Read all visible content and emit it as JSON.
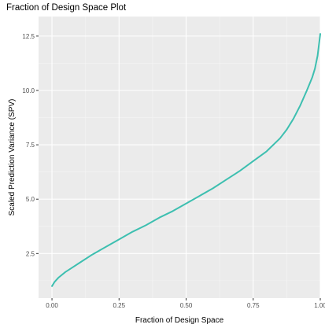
{
  "chart_data": {
    "type": "line",
    "title": "Fraction of Design Space Plot",
    "xlabel": "Fraction of Design Space",
    "ylabel": "Scaled Prediction Variance (SPV)",
    "xlim": [
      -0.05,
      1.0
    ],
    "ylim": [
      0.45,
      13.4
    ],
    "x_ticks": [
      0.0,
      0.25,
      0.5,
      0.75,
      1.0
    ],
    "x_tick_labels": [
      "0.00",
      "0.25",
      "0.50",
      "0.75",
      "1.00"
    ],
    "y_ticks": [
      2.5,
      5.0,
      7.5,
      10.0,
      12.5
    ],
    "y_tick_labels": [
      "2.5",
      "5.0",
      "7.5",
      "10.0",
      "12.5"
    ],
    "grid": true,
    "legend": "none",
    "series": [
      {
        "color": "#3dbfb0",
        "x": [
          0.0,
          0.01,
          0.025,
          0.05,
          0.075,
          0.1,
          0.15,
          0.2,
          0.25,
          0.3,
          0.35,
          0.4,
          0.45,
          0.5,
          0.55,
          0.6,
          0.65,
          0.7,
          0.75,
          0.8,
          0.85,
          0.875,
          0.9,
          0.925,
          0.95,
          0.97,
          0.98,
          0.99,
          1.0
        ],
        "y": [
          1.0,
          1.2,
          1.4,
          1.65,
          1.85,
          2.05,
          2.45,
          2.8,
          3.15,
          3.5,
          3.8,
          4.15,
          4.45,
          4.8,
          5.15,
          5.5,
          5.9,
          6.3,
          6.75,
          7.2,
          7.8,
          8.2,
          8.7,
          9.3,
          10.0,
          10.6,
          11.0,
          11.6,
          12.6
        ]
      }
    ]
  }
}
